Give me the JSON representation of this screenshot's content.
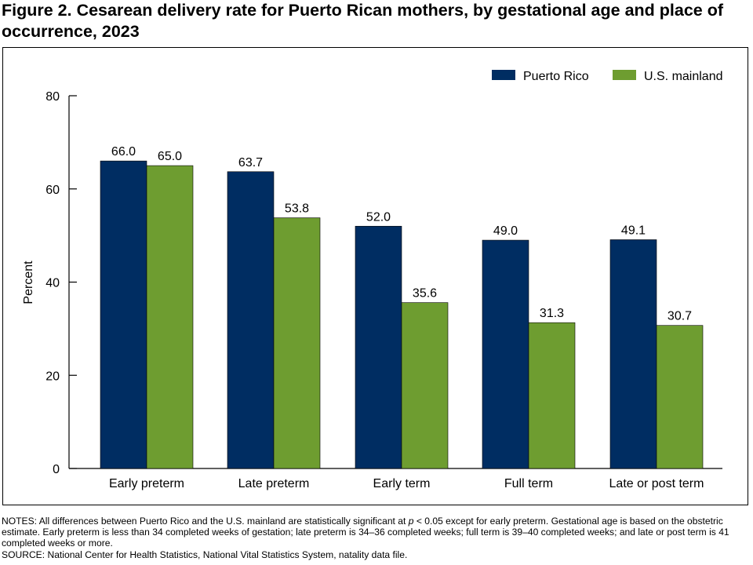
{
  "figure": {
    "title": "Figure 2. Cesarean delivery rate for Puerto Rican mothers, by gestational age and place of occurrence, 2023"
  },
  "chart_data": {
    "type": "bar",
    "title": "Figure 2. Cesarean delivery rate for Puerto Rican mothers, by gestational age and place of occurrence, 2023",
    "xlabel": "",
    "ylabel": "Percent",
    "ylim": [
      0,
      80
    ],
    "yticks": [
      0,
      20,
      40,
      60,
      80
    ],
    "grid": false,
    "legend_position": "top-right",
    "categories": [
      "Early preterm",
      "Late preterm",
      "Early term",
      "Full term",
      "Late or post term"
    ],
    "series": [
      {
        "name": "Puerto Rico",
        "color": "#002D62",
        "values": [
          66.0,
          63.7,
          52.0,
          49.0,
          49.1
        ]
      },
      {
        "name": "U.S. mainland",
        "color": "#6E9D30",
        "values": [
          65.0,
          53.8,
          35.6,
          31.3,
          30.7
        ]
      }
    ]
  },
  "notes": {
    "prefix": "NOTES: All differences between Puerto Rico and the U.S. mainland are statistically significant at ",
    "p_symbol": "p",
    "suffix": " < 0.05 except for early preterm. Gestational age is based on the obstetric estimate. Early preterm is less than 34 completed weeks of gestation; late preterm is 34–36 completed weeks; full term is 39–40 completed weeks; and late or post term is 41 completed weeks or more.",
    "source": "SOURCE: National Center for Health Statistics, National Vital Statistics System, natality data file."
  }
}
